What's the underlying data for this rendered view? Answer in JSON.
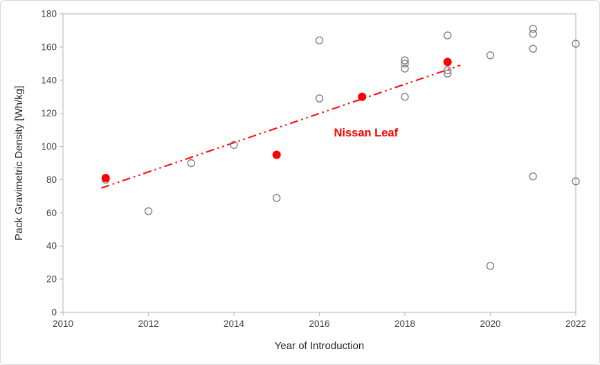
{
  "chart_data": {
    "type": "scatter",
    "title": "",
    "xlabel": "Year of Introduction",
    "ylabel": "Pack Gravimetric Density [Wh/kg]",
    "xlim": [
      2010,
      2022
    ],
    "ylim": [
      0,
      180
    ],
    "x_ticks": [
      2010,
      2012,
      2014,
      2016,
      2018,
      2020,
      2022
    ],
    "y_ticks": [
      0,
      20,
      40,
      60,
      80,
      100,
      120,
      140,
      160,
      180
    ],
    "grid": false,
    "legend": "none",
    "series": [
      {
        "id": "gray-open-circles",
        "marker": "open-circle",
        "color": "#7f7f7f",
        "points": [
          [
            2011,
            80
          ],
          [
            2012,
            61
          ],
          [
            2013,
            90
          ],
          [
            2014,
            101
          ],
          [
            2015,
            69
          ],
          [
            2016,
            129
          ],
          [
            2016,
            164
          ],
          [
            2018,
            130
          ],
          [
            2018,
            147
          ],
          [
            2018,
            150
          ],
          [
            2018,
            152
          ],
          [
            2019,
            144
          ],
          [
            2019,
            146
          ],
          [
            2019,
            167
          ],
          [
            2020,
            28
          ],
          [
            2020,
            155
          ],
          [
            2021,
            82
          ],
          [
            2021,
            159
          ],
          [
            2021,
            168
          ],
          [
            2021,
            171
          ],
          [
            2022,
            79
          ],
          [
            2022,
            162
          ]
        ]
      },
      {
        "id": "red-filled-circles",
        "marker": "filled-circle",
        "color": "#ff0000",
        "points": [
          [
            2011,
            81
          ],
          [
            2015,
            95
          ],
          [
            2017,
            130
          ],
          [
            2019,
            151
          ]
        ]
      }
    ],
    "trendline": {
      "color": "#ff1212",
      "style": "dash-dot-dot",
      "points": [
        [
          2010.9,
          75
        ],
        [
          2019.3,
          149
        ]
      ]
    },
    "annotation": {
      "text": "Nissan Leaf",
      "color": "#ff0000",
      "x": 2016.34,
      "y": 106
    }
  },
  "colors": {
    "marker_gray": "#7f7f7f",
    "accent_red": "#ff0000",
    "axis_line": "#bfbfbf",
    "tick_text": "#404040",
    "title_text": "#262626"
  }
}
